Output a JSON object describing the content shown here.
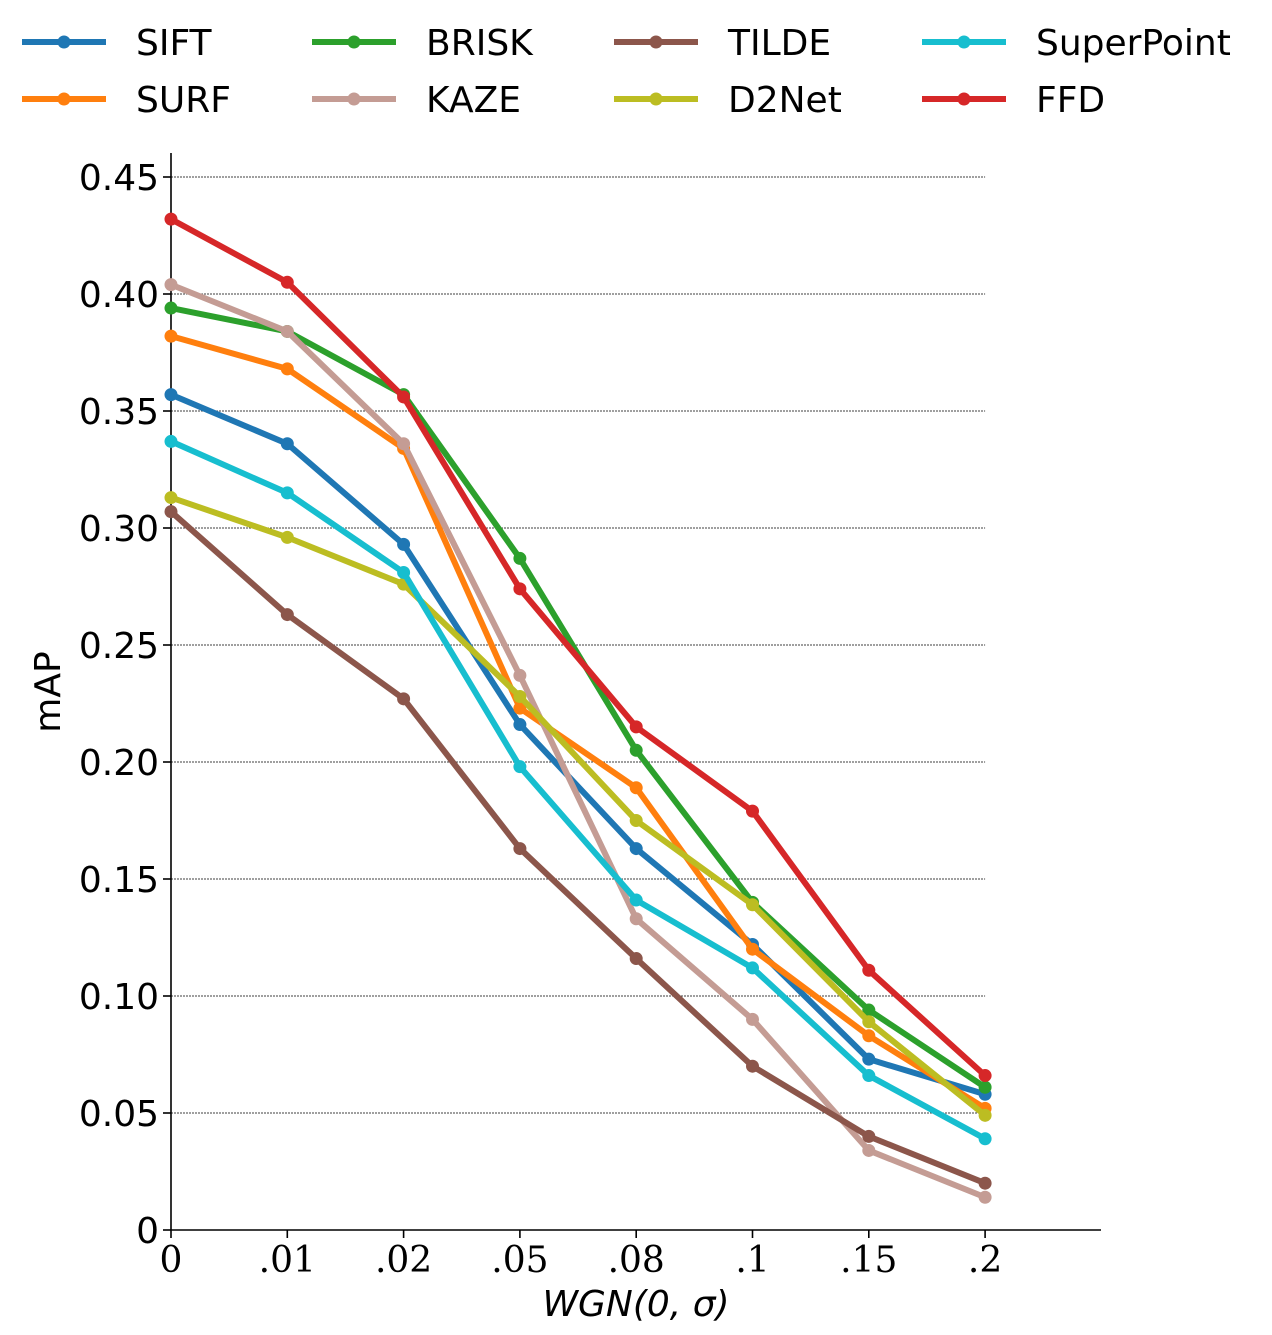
{
  "chart_data": {
    "type": "line",
    "title": "",
    "xlabel": "WGN(0, σ)",
    "ylabel": "mAP",
    "categories": [
      "0",
      ".01",
      ".02",
      ".05",
      ".08",
      ".1",
      ".15",
      ".2"
    ],
    "yticks": [
      "0",
      "0.05",
      "0.10",
      "0.15",
      "0.20",
      "0.25",
      "0.30",
      "0.35",
      "0.40",
      "0.45"
    ],
    "ytick_values": [
      0,
      0.05,
      0.1,
      0.15,
      0.2,
      0.25,
      0.3,
      0.35,
      0.4,
      0.45
    ],
    "ylim": [
      0,
      0.46
    ],
    "grid": "horizontal dashed",
    "legend_position": "top",
    "series": [
      {
        "name": "SIFT",
        "color": "#1f77b4",
        "values": [
          0.357,
          0.336,
          0.293,
          0.216,
          0.163,
          0.122,
          0.073,
          0.058
        ]
      },
      {
        "name": "SURF",
        "color": "#ff7f0e",
        "values": [
          0.382,
          0.368,
          0.334,
          0.223,
          0.189,
          0.12,
          0.083,
          0.052
        ]
      },
      {
        "name": "BRISK",
        "color": "#2ca02c",
        "values": [
          0.394,
          0.384,
          0.357,
          0.287,
          0.205,
          0.14,
          0.094,
          0.061
        ]
      },
      {
        "name": "KAZE",
        "color": "#c49c94",
        "values": [
          0.404,
          0.384,
          0.336,
          0.237,
          0.133,
          0.09,
          0.034,
          0.014
        ]
      },
      {
        "name": "TILDE",
        "color": "#8c564b",
        "values": [
          0.307,
          0.263,
          0.227,
          0.163,
          0.116,
          0.07,
          0.04,
          0.02
        ]
      },
      {
        "name": "D2Net",
        "color": "#bcbd22",
        "values": [
          0.313,
          0.296,
          0.276,
          0.228,
          0.175,
          0.139,
          0.089,
          0.049
        ]
      },
      {
        "name": "SuperPoint",
        "color": "#17becf",
        "values": [
          0.337,
          0.315,
          0.281,
          0.198,
          0.141,
          0.112,
          0.066,
          0.039
        ]
      },
      {
        "name": "FFD",
        "color": "#d62728",
        "values": [
          0.432,
          0.405,
          0.356,
          0.274,
          0.215,
          0.179,
          0.111,
          0.066
        ]
      }
    ]
  }
}
